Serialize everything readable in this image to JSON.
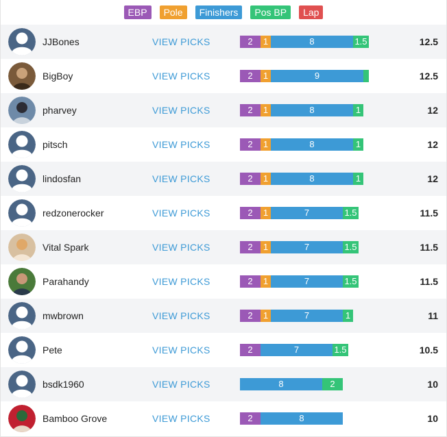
{
  "legend": [
    {
      "key": "ebp",
      "label": "EBP",
      "color": "#9b59b6"
    },
    {
      "key": "pole",
      "label": "Pole",
      "color": "#f0a030"
    },
    {
      "key": "finishers",
      "label": "Finishers",
      "color": "#3d9ad6"
    },
    {
      "key": "posbp",
      "label": "Pos BP",
      "color": "#34c478"
    },
    {
      "key": "lap",
      "label": "Lap",
      "color": "#e05050"
    }
  ],
  "view_picks_label": "VIEW PICKS",
  "rows": [
    {
      "username": "JJBones",
      "avatar": "default-avatar-icon",
      "total": "12.5",
      "segments": [
        {
          "type": "ebp",
          "value": 2,
          "label": "2"
        },
        {
          "type": "pole",
          "value": 1,
          "label": "1"
        },
        {
          "type": "finishers",
          "value": 8,
          "label": "8"
        },
        {
          "type": "posbp",
          "value": 1.5,
          "label": "1.5"
        }
      ]
    },
    {
      "username": "BigBoy",
      "avatar": "photo-avatar-icon",
      "total": "12.5",
      "segments": [
        {
          "type": "ebp",
          "value": 2,
          "label": "2"
        },
        {
          "type": "pole",
          "value": 1,
          "label": "1"
        },
        {
          "type": "finishers",
          "value": 9,
          "label": "9"
        },
        {
          "type": "posbp",
          "value": 0.5,
          "label": ""
        }
      ]
    },
    {
      "username": "pharvey",
      "avatar": "photo-avatar-icon",
      "total": "12",
      "segments": [
        {
          "type": "ebp",
          "value": 2,
          "label": "2"
        },
        {
          "type": "pole",
          "value": 1,
          "label": "1"
        },
        {
          "type": "finishers",
          "value": 8,
          "label": "8"
        },
        {
          "type": "posbp",
          "value": 1,
          "label": "1"
        }
      ]
    },
    {
      "username": "pitsch",
      "avatar": "default-avatar-icon",
      "total": "12",
      "segments": [
        {
          "type": "ebp",
          "value": 2,
          "label": "2"
        },
        {
          "type": "pole",
          "value": 1,
          "label": "1"
        },
        {
          "type": "finishers",
          "value": 8,
          "label": "8"
        },
        {
          "type": "posbp",
          "value": 1,
          "label": "1"
        }
      ]
    },
    {
      "username": "lindosfan",
      "avatar": "default-avatar-icon",
      "total": "12",
      "segments": [
        {
          "type": "ebp",
          "value": 2,
          "label": "2"
        },
        {
          "type": "pole",
          "value": 1,
          "label": "1"
        },
        {
          "type": "finishers",
          "value": 8,
          "label": "8"
        },
        {
          "type": "posbp",
          "value": 1,
          "label": "1"
        }
      ]
    },
    {
      "username": "redzonerocker",
      "avatar": "default-avatar-icon",
      "total": "11.5",
      "segments": [
        {
          "type": "ebp",
          "value": 2,
          "label": "2"
        },
        {
          "type": "pole",
          "value": 1,
          "label": "1"
        },
        {
          "type": "finishers",
          "value": 7,
          "label": "7"
        },
        {
          "type": "posbp",
          "value": 1.5,
          "label": "1.5"
        }
      ]
    },
    {
      "username": "Vital Spark",
      "avatar": "photo-avatar-icon",
      "total": "11.5",
      "segments": [
        {
          "type": "ebp",
          "value": 2,
          "label": "2"
        },
        {
          "type": "pole",
          "value": 1,
          "label": "1"
        },
        {
          "type": "finishers",
          "value": 7,
          "label": "7"
        },
        {
          "type": "posbp",
          "value": 1.5,
          "label": "1.5"
        }
      ]
    },
    {
      "username": "Parahandy",
      "avatar": "photo-avatar-icon",
      "total": "11.5",
      "segments": [
        {
          "type": "ebp",
          "value": 2,
          "label": "2"
        },
        {
          "type": "pole",
          "value": 1,
          "label": "1"
        },
        {
          "type": "finishers",
          "value": 7,
          "label": "7"
        },
        {
          "type": "posbp",
          "value": 1.5,
          "label": "1.5"
        }
      ]
    },
    {
      "username": "mwbrown",
      "avatar": "default-avatar-icon",
      "total": "11",
      "segments": [
        {
          "type": "ebp",
          "value": 2,
          "label": "2"
        },
        {
          "type": "pole",
          "value": 1,
          "label": "1"
        },
        {
          "type": "finishers",
          "value": 7,
          "label": "7"
        },
        {
          "type": "posbp",
          "value": 1,
          "label": "1"
        }
      ]
    },
    {
      "username": "Pete",
      "avatar": "default-avatar-icon",
      "total": "10.5",
      "segments": [
        {
          "type": "ebp",
          "value": 2,
          "label": "2"
        },
        {
          "type": "finishers",
          "value": 7,
          "label": "7"
        },
        {
          "type": "posbp",
          "value": 1.5,
          "label": "1.5"
        }
      ]
    },
    {
      "username": "bsdk1960",
      "avatar": "default-avatar-icon",
      "total": "10",
      "segments": [
        {
          "type": "finishers",
          "value": 8,
          "label": "8"
        },
        {
          "type": "posbp",
          "value": 2,
          "label": "2"
        }
      ]
    },
    {
      "username": "Bamboo Grove",
      "avatar": "photo-avatar-icon",
      "total": "10",
      "segments": [
        {
          "type": "ebp",
          "value": 2,
          "label": "2"
        },
        {
          "type": "finishers",
          "value": 8,
          "label": "8"
        }
      ]
    }
  ]
}
